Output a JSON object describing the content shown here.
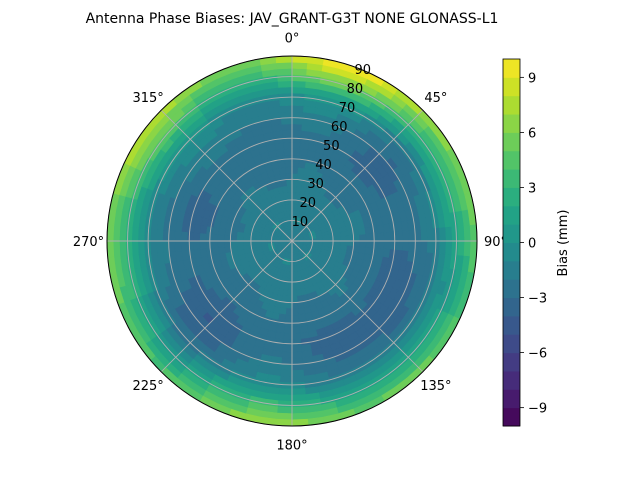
{
  "chart_data": {
    "type": "heatmap",
    "projection": "polar",
    "title": "Antenna Phase Biases: JAV_GRANT-G3T   NONE GLONASS-L1",
    "theta_ticks": [
      "0°",
      "45°",
      "90°",
      "135°",
      "180°",
      "225°",
      "270°",
      "315°"
    ],
    "theta_direction": "clockwise",
    "theta_zero": "top",
    "r_ticks": [
      "10",
      "20",
      "30",
      "40",
      "50",
      "60",
      "70",
      "80",
      "90"
    ],
    "rlim": [
      0,
      90
    ],
    "grid": true,
    "colorbar": {
      "label": "Bias (mm)",
      "range": [
        -10,
        10
      ],
      "ticks": [
        "9",
        "6",
        "3",
        "0",
        "−3",
        "−6",
        "−9"
      ],
      "tick_values": [
        9,
        6,
        3,
        0,
        -3,
        -6,
        -9
      ],
      "colormap": "viridis",
      "levels": 20
    },
    "field": {
      "description_values_mm": "approximate bias by zenith ring and azimuth",
      "center": -2,
      "ring_values": [
        {
          "r": 10,
          "value": -1
        },
        {
          "r": 30,
          "value": -2
        },
        {
          "r": 50,
          "value": -2.5
        },
        {
          "r": 70,
          "value": -1
        },
        {
          "r": 85,
          "value": 3
        },
        {
          "r": 90,
          "value": 5
        }
      ],
      "hotspots": [
        {
          "az": 15,
          "r": 88,
          "value": 8
        },
        {
          "az": 40,
          "r": 88,
          "value": 6
        },
        {
          "az": 180,
          "r": 88,
          "value": 6
        },
        {
          "az": 300,
          "r": 85,
          "value": 6
        },
        {
          "az": 60,
          "r": 60,
          "value": -3
        },
        {
          "az": 135,
          "r": 60,
          "value": -4
        },
        {
          "az": 230,
          "r": 60,
          "value": -3.5
        },
        {
          "az": 290,
          "r": 45,
          "value": -3
        }
      ]
    }
  }
}
